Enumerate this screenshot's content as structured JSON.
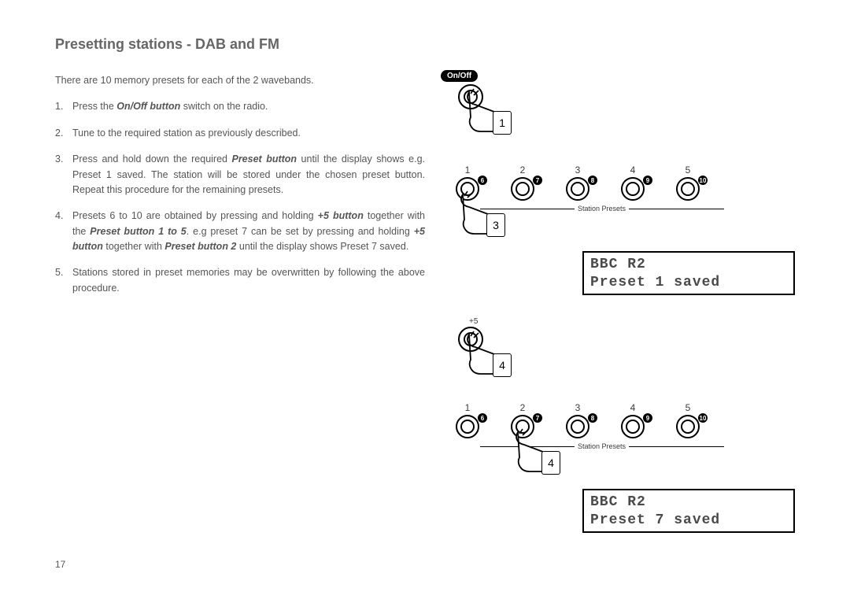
{
  "title": "Presetting stations - DAB and FM",
  "intro": "There are 10 memory presets for each of the 2 wavebands.",
  "steps": [
    {
      "n": "1.",
      "pre": "Press the ",
      "em": "On/Off button",
      "post": " switch on the radio."
    },
    {
      "n": "2.",
      "pre": "Tune to the required station as previously described.",
      "em": "",
      "post": ""
    },
    {
      "n": "3.",
      "pre": "Press and hold down the required ",
      "em": "Preset button",
      "post": " until the display shows e.g. Preset 1 saved. The station will be stored under the chosen preset button. Repeat this procedure for the remaining presets."
    },
    {
      "n": "4.",
      "pre": "Presets 6 to 10 are obtained by pressing and holding ",
      "em": "+5 button",
      "post": " together with the ",
      "em2": "Preset button 1 to 5",
      "post2": ". e.g preset 7 can be set by pressing and holding ",
      "em3": "+5 button",
      "post3": " together with ",
      "em4": "Preset button 2",
      "post4": " until the display shows Preset 7 saved."
    },
    {
      "n": "5.",
      "pre": "Stations stored in preset memories may be overwritten by following the above procedure.",
      "em": "",
      "post": ""
    }
  ],
  "onOffLabel": "On/Off",
  "stationPresetsLabel": "Station Presets",
  "plus5Label": "+5",
  "presetTop": [
    "1",
    "2",
    "3",
    "4",
    "5"
  ],
  "presetAlt": [
    "6",
    "7",
    "8",
    "9",
    "10"
  ],
  "display1_line1": "BBC R2",
  "display1_line2": "Preset 1 saved",
  "display2_line1": "BBC R2",
  "display2_line2": "Preset 7 saved",
  "handBadges": {
    "onoff": "1",
    "row1": "3",
    "plus5": "4",
    "row2": "4"
  },
  "pageNumber": "17"
}
